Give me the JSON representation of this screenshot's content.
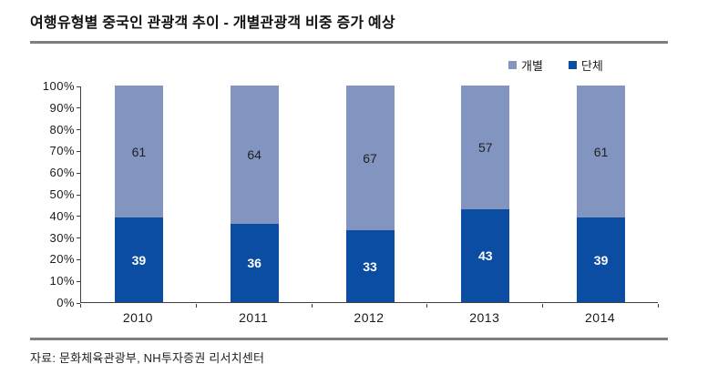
{
  "page": {
    "title": "여행유형별 중국인 관광객 추이 - 개별관광객 비중 증가 예상",
    "source": "자료: 문화체육관광부, NH투자증권 리서치센터"
  },
  "colors": {
    "individual_series": "#8294c0",
    "group_series": "#0b4da2",
    "rule_gray": "#7f7f7f",
    "axis": "#404040"
  },
  "chart_data": {
    "type": "bar",
    "stacked": true,
    "title": "여행유형별 중국인 관광객 추이 - 개별관광객 비중 증가 예상",
    "categories": [
      "2010",
      "2011",
      "2012",
      "2013",
      "2014"
    ],
    "series": [
      {
        "name": "개별",
        "values": [
          61,
          64,
          67,
          57,
          61
        ],
        "color": "#8294c0",
        "label_color": "#1f1f1f",
        "position": "top"
      },
      {
        "name": "단체",
        "values": [
          39,
          36,
          33,
          43,
          39
        ],
        "color": "#0b4da2",
        "label_color": "#ffffff",
        "position": "bottom"
      }
    ],
    "ylabel": "",
    "xlabel": "",
    "ylim": [
      0,
      100
    ],
    "yticks": [
      "0%",
      "10%",
      "20%",
      "30%",
      "40%",
      "50%",
      "60%",
      "70%",
      "80%",
      "90%",
      "100%"
    ],
    "grid": false,
    "legend_position": "top-right",
    "value_labels": "inside-center"
  }
}
